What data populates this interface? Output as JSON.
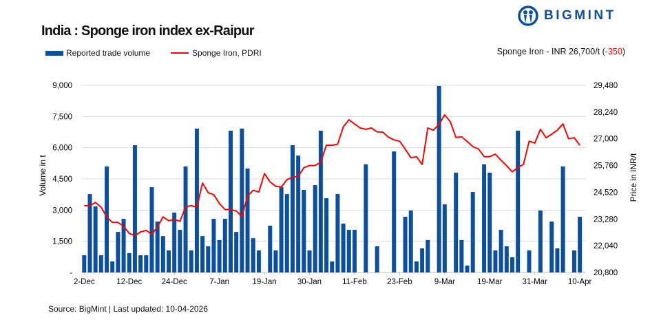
{
  "header": {
    "title": "India : Sponge iron index ex-Raipur",
    "brand": "BIGMINT",
    "price_note_prefix": "Sponge Iron - INR 26,700/t (",
    "price_note_change": "-350",
    "price_note_suffix": ")"
  },
  "footer": {
    "source": "Source: BigMint | Last updated: 10-04-2026"
  },
  "colors": {
    "bar": "#0b4f9e",
    "line": "#ff0000",
    "grid": "#d9d9d9"
  },
  "chart_data": {
    "type": "bar+line",
    "title": "India : Sponge iron index ex-Raipur",
    "legend": [
      "Reported trade volume",
      "Sponge Iron, PDRI"
    ],
    "legend_placement": "top-left",
    "ylabel": "Volume in t",
    "y2label": "Price in INR/t",
    "ylim": [
      0,
      9000
    ],
    "y2lim": [
      20800,
      29480
    ],
    "yticks": [
      "-",
      "1,500",
      "3,000",
      "4,500",
      "6,000",
      "7,500",
      "9,000"
    ],
    "y2ticks": [
      "20,800",
      "22,040",
      "23,280",
      "24,520",
      "25,760",
      "27,000",
      "28,240",
      "29,480"
    ],
    "xtick_labels": [
      "2-Dec",
      "12-Dec",
      "24-Dec",
      "7-Jan",
      "19-Jan",
      "30-Jan",
      "11-Feb",
      "23-Feb",
      "9-Mar",
      "19-Mar",
      "31-Mar",
      "10-Apr"
    ],
    "xtick_every": 8,
    "grid": true,
    "series": [
      {
        "name": "Reported trade volume",
        "type": "bar",
        "values": [
          830,
          3770,
          3180,
          830,
          5100,
          530,
          1950,
          2580,
          930,
          6120,
          830,
          830,
          4100,
          2450,
          1750,
          1060,
          2880,
          2050,
          5100,
          1060,
          6920,
          1750,
          1260,
          2580,
          1560,
          2580,
          6820,
          1950,
          6920,
          5000,
          1650,
          1060,
          null,
          2250,
          1060,
          4100,
          3770,
          6120,
          5620,
          3970,
          1060,
          4200,
          6820,
          3570,
          530,
          3770,
          2350,
          2050,
          2050,
          null,
          5200,
          null,
          1260,
          null,
          null,
          5820,
          null,
          2680,
          2980,
          530,
          1160,
          1560,
          null,
          8970,
          3280,
          null,
          4800,
          1560,
          330,
          3870,
          null,
          5200,
          4800,
          1060,
          2050,
          1260,
          730,
          6820,
          null,
          1060,
          null,
          2980,
          null,
          2450,
          1160,
          5100,
          null,
          1060,
          2680
        ]
      },
      {
        "name": "Sponge Iron, PDRI",
        "type": "line",
        "values": [
          23900,
          23900,
          24050,
          23830,
          23380,
          23120,
          23120,
          22940,
          22610,
          22510,
          22680,
          22750,
          22570,
          22910,
          23380,
          23200,
          23260,
          23170,
          23840,
          23900,
          23830,
          24950,
          24500,
          24410,
          24000,
          23720,
          23720,
          23650,
          23400,
          24340,
          24610,
          24530,
          25390,
          25000,
          24800,
          24760,
          25110,
          25210,
          25260,
          25660,
          25760,
          25760,
          25920,
          26700,
          26700,
          26750,
          27560,
          27880,
          27690,
          27500,
          27440,
          27500,
          27320,
          27310,
          27080,
          26950,
          26890,
          26520,
          26120,
          26170,
          25810,
          27500,
          27400,
          27670,
          28110,
          27790,
          27060,
          27090,
          26880,
          26640,
          26530,
          26170,
          26170,
          26290,
          26010,
          25750,
          25470,
          25670,
          25820,
          26890,
          26800,
          27440,
          27050,
          27210,
          27400,
          27690,
          27000,
          27050,
          26700
        ]
      }
    ]
  }
}
